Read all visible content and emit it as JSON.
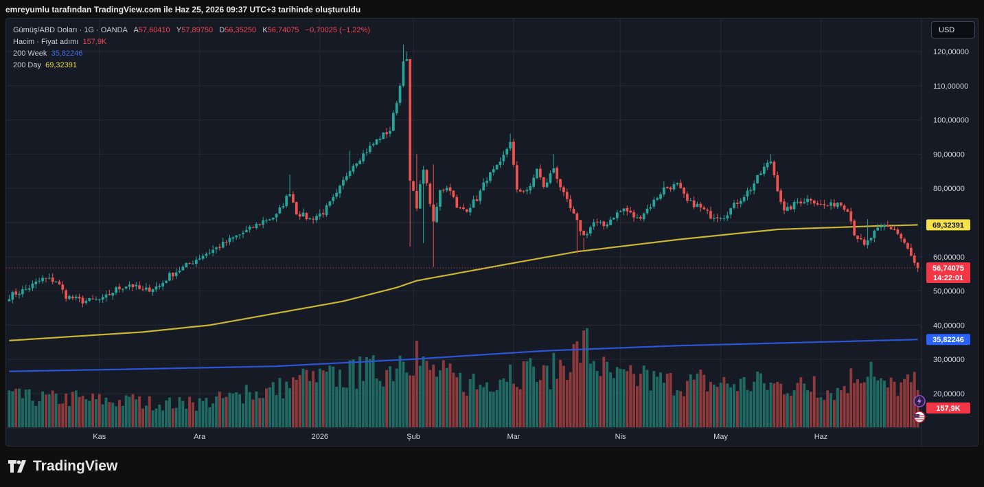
{
  "header": {
    "attribution": "emreyumlu tarafından TradingView.com ile Haz 25, 2026 09:37 UTC+3 tarihinde oluşturuldu"
  },
  "legend": {
    "symbol": "Gümüş/ABD Doları · 1G · OANDA",
    "ohlc": {
      "a_label": "A",
      "a": "57,60410",
      "y_label": "Y",
      "y": "57,89750",
      "d_label": "D",
      "d": "56,35250",
      "k_label": "K",
      "k": "56,74075",
      "change": "−0,70025 (−1,22%)"
    },
    "volume_label": "Hacim · Fiyat adımı",
    "volume_value": "157,9K",
    "ma200w_label": "200 Week",
    "ma200w_value": "35,82246",
    "ma200d_label": "200 Day",
    "ma200d_value": "69,32391"
  },
  "currency_button": "USD",
  "brand": "TradingView",
  "colors": {
    "up": "#26a69a",
    "down": "#ef5350",
    "ma200d": "#c9b637",
    "ma200w": "#2c55d8",
    "bg": "#161a25",
    "grid": "#242935"
  },
  "chart_data": {
    "type": "candlestick",
    "title": "Gümüş/ABD Doları · 1G · OANDA",
    "y_axis_ticks": [
      "120,00000",
      "110,00000",
      "100,00000",
      "90,00000",
      "80,00000",
      "70,00000",
      "60,00000",
      "50,00000",
      "40,00000",
      "30,00000",
      "20,00000"
    ],
    "y_tick_values": [
      120,
      110,
      100,
      90,
      80,
      70,
      60,
      50,
      40,
      30,
      20
    ],
    "ylim": [
      16,
      124
    ],
    "x_axis_ticks": [
      "Kas",
      "Ara",
      "2026",
      "Şub",
      "Mar",
      "Nis",
      "May",
      "Haz"
    ],
    "x_tick_bar_index": [
      27,
      57,
      93,
      121,
      151,
      183,
      213,
      243
    ],
    "bar_count": 273,
    "price_anchors": [
      [
        0,
        48.5
      ],
      [
        5,
        50.5
      ],
      [
        10,
        53.5
      ],
      [
        14,
        53.0
      ],
      [
        17,
        48.5
      ],
      [
        22,
        47.0
      ],
      [
        28,
        47.5
      ],
      [
        32,
        50.5
      ],
      [
        36,
        52.0
      ],
      [
        40,
        50.0
      ],
      [
        45,
        51.5
      ],
      [
        48,
        54.5
      ],
      [
        52,
        56.8
      ],
      [
        58,
        60.5
      ],
      [
        62,
        62.5
      ],
      [
        68,
        66.0
      ],
      [
        72,
        68.0
      ],
      [
        76,
        70.5
      ],
      [
        80,
        72.0
      ],
      [
        84,
        79.0
      ],
      [
        86,
        73.0
      ],
      [
        90,
        71.0
      ],
      [
        94,
        73.0
      ],
      [
        98,
        78.0
      ],
      [
        102,
        86.0
      ],
      [
        107,
        91.0
      ],
      [
        111,
        95.0
      ],
      [
        114,
        97.0
      ],
      [
        117,
        110.0
      ],
      [
        118,
        118.0
      ],
      [
        119,
        117.0
      ],
      [
        120,
        82.0
      ],
      [
        122,
        75.0
      ],
      [
        124,
        86.0
      ],
      [
        127,
        70.0
      ],
      [
        129,
        80.0
      ],
      [
        132,
        80.0
      ],
      [
        134,
        74.0
      ],
      [
        137,
        74.0
      ],
      [
        140,
        77.0
      ],
      [
        143,
        83.0
      ],
      [
        147,
        87.0
      ],
      [
        150,
        94.0
      ],
      [
        152,
        79.0
      ],
      [
        156,
        80.0
      ],
      [
        158,
        86.0
      ],
      [
        160,
        80.0
      ],
      [
        163,
        86.0
      ],
      [
        166,
        78.0
      ],
      [
        168,
        74.0
      ],
      [
        172,
        66.0
      ],
      [
        175,
        70.0
      ],
      [
        178,
        69.0
      ],
      [
        181,
        72.0
      ],
      [
        184,
        74.0
      ],
      [
        188,
        71.0
      ],
      [
        192,
        75.0
      ],
      [
        196,
        80.0
      ],
      [
        200,
        81.0
      ],
      [
        203,
        76.0
      ],
      [
        206,
        75.0
      ],
      [
        210,
        72.0
      ],
      [
        214,
        72.0
      ],
      [
        218,
        76.0
      ],
      [
        222,
        80.0
      ],
      [
        226,
        86.0
      ],
      [
        228,
        88.0
      ],
      [
        230,
        80.0
      ],
      [
        232,
        73.0
      ],
      [
        236,
        76.0
      ],
      [
        240,
        77.0
      ],
      [
        243,
        75.0
      ],
      [
        246,
        75.0
      ],
      [
        248,
        76.0
      ],
      [
        251,
        74.0
      ],
      [
        253,
        67.0
      ],
      [
        256,
        63.0
      ],
      [
        259,
        67.0
      ],
      [
        262,
        69.0
      ],
      [
        265,
        68.0
      ],
      [
        268,
        64.0
      ],
      [
        271,
        58.0
      ],
      [
        272,
        56.7
      ]
    ],
    "high_spikes": [
      [
        84,
        84.0
      ],
      [
        102,
        91.0
      ],
      [
        118,
        122.0
      ],
      [
        119,
        120.0
      ],
      [
        120,
        105.0
      ],
      [
        122,
        90.0
      ],
      [
        127,
        87.0
      ],
      [
        150,
        96.0
      ],
      [
        163,
        90.0
      ],
      [
        172,
        62.0
      ],
      [
        196,
        82.0
      ],
      [
        228,
        90.0
      ],
      [
        257,
        71.0
      ]
    ],
    "low_spikes": [
      [
        120,
        63.0
      ],
      [
        124,
        64.0
      ],
      [
        127,
        57.0
      ],
      [
        170,
        61.0
      ]
    ],
    "ma200d": {
      "name": "200 Day",
      "last": 69.32391,
      "anchors": [
        [
          0,
          35.5
        ],
        [
          40,
          38.0
        ],
        [
          60,
          40.0
        ],
        [
          80,
          43.5
        ],
        [
          100,
          47.0
        ],
        [
          116,
          51.0
        ],
        [
          122,
          53.0
        ],
        [
          150,
          58.0
        ],
        [
          170,
          61.5
        ],
        [
          200,
          65.0
        ],
        [
          230,
          68.0
        ],
        [
          260,
          69.0
        ],
        [
          272,
          69.32
        ]
      ]
    },
    "ma200w": {
      "name": "200 Week",
      "last": 35.82246,
      "anchors": [
        [
          0,
          26.5
        ],
        [
          40,
          27.2
        ],
        [
          80,
          28.0
        ],
        [
          120,
          30.0
        ],
        [
          160,
          32.5
        ],
        [
          200,
          34.0
        ],
        [
          240,
          35.0
        ],
        [
          272,
          35.82
        ]
      ]
    },
    "volume": {
      "label": "Hacim",
      "last": "157,9K",
      "axis_max_units": 52,
      "peaks": [
        [
          0,
          18
        ],
        [
          20,
          17
        ],
        [
          40,
          15
        ],
        [
          55,
          14
        ],
        [
          75,
          21
        ],
        [
          90,
          28
        ],
        [
          100,
          31
        ],
        [
          115,
          36
        ],
        [
          118,
          48
        ],
        [
          120,
          44
        ],
        [
          124,
          36
        ],
        [
          140,
          24
        ],
        [
          150,
          35
        ],
        [
          160,
          30
        ],
        [
          172,
          48
        ],
        [
          180,
          30
        ],
        [
          200,
          27
        ],
        [
          220,
          26
        ],
        [
          235,
          25
        ],
        [
          248,
          22
        ],
        [
          255,
          35
        ],
        [
          262,
          24
        ],
        [
          270,
          26
        ]
      ]
    },
    "last_price_label": "56,74075",
    "countdown_label": "14:22:01",
    "ma200d_label": "69,32391",
    "ma200w_label": "35,82246",
    "volume_badge": "157,9K"
  }
}
